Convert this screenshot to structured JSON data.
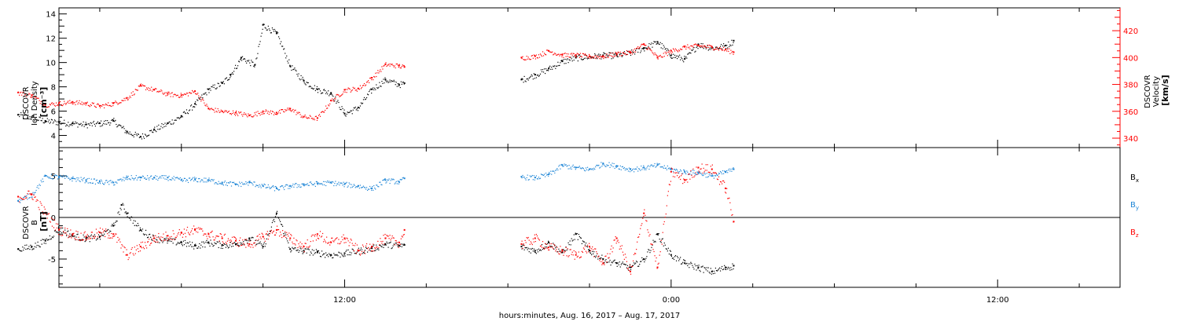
{
  "chart_data": [
    {
      "type": "scatter",
      "panel": "plasma",
      "ylabel_lines": [
        "DSCOVR",
        "Ion Density",
        "[cm⁻³]"
      ],
      "y2label_lines": [
        "DSCOVR",
        "Velocity",
        "[km/s]"
      ],
      "ylim": [
        3,
        14.5
      ],
      "ylim_right": [
        333,
        437
      ],
      "yticks": [
        4,
        6,
        8,
        10,
        12,
        14
      ],
      "yticks_right": [
        340,
        360,
        380,
        400,
        420
      ],
      "grid": false,
      "series": [
        {
          "color": "#000000",
          "axis": "left",
          "x": [
            0,
            0.5,
            1,
            1.5,
            2,
            2.5,
            3,
            3.5,
            4,
            4.5,
            5,
            5.5,
            6,
            6.5,
            7,
            7.5,
            7.8,
            8.2,
            8.7,
            9,
            9.5,
            10,
            10.5,
            11,
            11.5,
            12,
            12.5,
            13,
            13.5,
            14,
            14.2,
            18.5,
            19,
            19.5,
            20,
            20.5,
            21,
            21.5,
            22,
            22.5,
            23,
            23.5,
            24,
            24.5,
            25,
            25.5,
            26,
            26.3
          ],
          "y": [
            5.7,
            5.5,
            5.2,
            5.1,
            5.0,
            4.9,
            5.0,
            5.2,
            4.3,
            3.9,
            4.5,
            5.0,
            5.6,
            6.6,
            7.8,
            8.3,
            9.0,
            10.4,
            9.8,
            13.1,
            12.4,
            9.7,
            8.5,
            7.8,
            7.5,
            5.8,
            6.3,
            7.8,
            8.6,
            8.2,
            8.3,
            8.6,
            9.0,
            9.5,
            10.1,
            10.4,
            10.5,
            10.6,
            10.6,
            10.8,
            11.2,
            11.7,
            10.6,
            10.3,
            11.5,
            11.2,
            11.4,
            11.8
          ]
        },
        {
          "color": "#ff0000",
          "axis": "right",
          "x": [
            0,
            0.5,
            1,
            1.5,
            2,
            2.5,
            3,
            3.5,
            4,
            4.5,
            5,
            5.5,
            6,
            6.5,
            7,
            7.5,
            8,
            8.5,
            9,
            9.5,
            10,
            10.5,
            11,
            11.5,
            12,
            12.5,
            13,
            13.5,
            14,
            14.2,
            18.5,
            19,
            19.5,
            20,
            20.5,
            21,
            21.5,
            22,
            22.5,
            23,
            23.5,
            24,
            24.5,
            25,
            25.5,
            26,
            26.3
          ],
          "y": [
            374,
            372,
            365,
            366,
            367,
            366,
            364,
            366,
            370,
            379,
            376,
            373,
            372,
            375,
            362,
            360,
            359,
            357,
            360,
            359,
            362,
            356,
            355,
            368,
            376,
            377,
            385,
            395,
            394,
            393,
            400,
            401,
            405,
            402,
            402,
            401,
            401,
            403,
            404,
            410,
            400,
            405,
            408,
            409,
            408,
            406,
            404
          ]
        }
      ]
    },
    {
      "type": "scatter",
      "panel": "magnetic field",
      "ylabel_lines": [
        "DSCOVR",
        "B",
        "[nT]"
      ],
      "ylim": [
        -8.4,
        8.4
      ],
      "yticks": [
        -5,
        0,
        5
      ],
      "zero_line": true,
      "legend_position": "right",
      "series": [
        {
          "name": "Bx",
          "color": "#000000",
          "x": [
            0,
            0.5,
            1,
            1.5,
            2,
            2.5,
            3,
            3.5,
            3.8,
            4,
            4.5,
            5,
            5.5,
            6,
            6.5,
            7,
            7.5,
            8,
            8.5,
            9,
            9.5,
            10,
            10.5,
            11,
            11.5,
            12,
            12.5,
            13,
            13.5,
            14,
            14.2,
            18.5,
            19,
            19.5,
            20,
            20.5,
            21,
            21.5,
            22,
            22.5,
            23,
            23.5,
            24,
            24.5,
            25,
            25.5,
            26,
            26.3
          ],
          "y": [
            -3.8,
            -3.5,
            -2.8,
            -1.3,
            -2.2,
            -2.5,
            -2.3,
            -1.0,
            1.5,
            0.5,
            -1.5,
            -2.5,
            -2.8,
            -3.0,
            -3.4,
            -3.0,
            -3.3,
            -3.2,
            -2.5,
            -3.5,
            0.5,
            -3.8,
            -4.0,
            -4.2,
            -4.5,
            -4.3,
            -4.0,
            -3.7,
            -3.2,
            -3.4,
            -3.3,
            -3.5,
            -4.0,
            -3.0,
            -4.2,
            -2.0,
            -4.0,
            -5.0,
            -5.5,
            -6.0,
            -5.0,
            -2.0,
            -4.5,
            -5.5,
            -6.0,
            -6.5,
            -6.0,
            -5.8
          ]
        },
        {
          "name": "By",
          "color": "#1f86d6",
          "x": [
            0,
            0.5,
            1,
            1.5,
            2,
            2.5,
            3,
            3.5,
            4,
            4.5,
            5,
            5.5,
            6,
            6.5,
            7,
            7.5,
            8,
            8.5,
            9,
            9.5,
            10,
            10.5,
            11,
            11.5,
            12,
            12.5,
            13,
            13.5,
            14,
            14.2,
            18.5,
            19,
            19.5,
            20,
            20.5,
            21,
            21.5,
            22,
            22.5,
            23,
            23.5,
            24,
            24.5,
            25,
            25.5,
            26,
            26.3
          ],
          "y": [
            2.0,
            2.8,
            5.0,
            4.9,
            4.7,
            4.5,
            4.3,
            4.2,
            4.8,
            4.8,
            4.8,
            4.8,
            4.5,
            4.6,
            4.5,
            4.2,
            4.0,
            4.2,
            3.8,
            3.5,
            3.8,
            4.0,
            4.1,
            4.2,
            4.0,
            3.8,
            3.5,
            4.5,
            4.3,
            4.7,
            4.9,
            4.8,
            5.2,
            6.3,
            6.0,
            5.8,
            6.5,
            6.2,
            5.8,
            6.0,
            6.3,
            5.8,
            5.5,
            5.4,
            5.0,
            5.5,
            5.8
          ]
        },
        {
          "name": "Bz",
          "color": "#ff0000",
          "x": [
            0,
            0.5,
            1,
            1.5,
            2,
            2.5,
            3,
            3.5,
            4,
            4.5,
            5,
            5.5,
            6,
            6.5,
            7,
            7.5,
            8,
            8.5,
            9,
            9.5,
            10,
            10.5,
            11,
            11.5,
            12,
            12.5,
            13,
            13.5,
            14,
            14.2,
            18.5,
            19,
            19.5,
            20,
            20.5,
            21,
            21.5,
            22,
            22.5,
            23,
            23.5,
            24,
            24.5,
            25,
            25.5,
            26,
            26.3
          ],
          "y": [
            2.5,
            2.8,
            0.5,
            -1.5,
            -2.0,
            -2.3,
            -1.8,
            -2.0,
            -4.5,
            -3.5,
            -2.5,
            -2.2,
            -1.8,
            -1.5,
            -2.0,
            -2.5,
            -2.8,
            -3.2,
            -2.3,
            -1.5,
            -2.5,
            -3.5,
            -2.0,
            -3.0,
            -2.5,
            -4.0,
            -3.5,
            -2.5,
            -3.0,
            -1.5,
            -3.2,
            -2.5,
            -3.6,
            -4.0,
            -4.5,
            -3.5,
            -5.5,
            -2.5,
            -6.5,
            0.5,
            -6.0,
            5.5,
            4.5,
            6.0,
            5.8,
            3.5,
            -0.5
          ]
        }
      ]
    },
    {
      "xlabel": "hours:minutes, Aug. 16, 2017 – Aug. 17, 2017",
      "xlim": [
        1.5,
        40.5
      ],
      "xticks": [
        12,
        24,
        36
      ],
      "xtick_labels": [
        "12:00",
        "0:00",
        "12:00"
      ]
    }
  ],
  "legend_labels": {
    "bx_main": "B",
    "bx_sub": "x",
    "by_main": "B",
    "by_sub": "y",
    "bz_main": "B",
    "bz_sub": "z"
  }
}
